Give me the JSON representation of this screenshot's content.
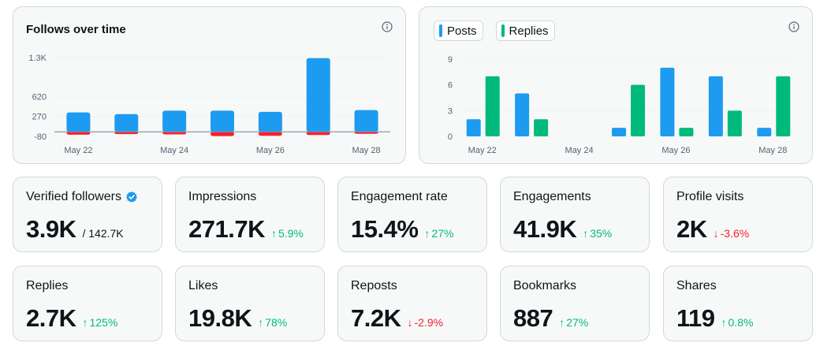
{
  "follows_chart": {
    "title": "Follows over time",
    "info_icon": "info-icon",
    "chart_data": {
      "type": "bar",
      "categories": [
        "May 22",
        "May 23",
        "May 24",
        "May 25",
        "May 26",
        "May 27",
        "May 28"
      ],
      "x_tick_labels": [
        "May 22",
        "May 24",
        "May 26",
        "May 28"
      ],
      "y_tick_labels": [
        "1.3K",
        "620",
        "270",
        "-80"
      ],
      "y_ticks": [
        1300,
        620,
        270,
        -80
      ],
      "ylim": [
        -80,
        1300
      ],
      "series": [
        {
          "values": [
            340,
            310,
            370,
            370,
            350,
            1290,
            380
          ],
          "color": "#1d9bf0"
        },
        {
          "values": [
            -50,
            -40,
            -45,
            -75,
            -70,
            -55,
            -35
          ],
          "color": "#f4212e"
        }
      ]
    }
  },
  "posts_chart": {
    "legend": [
      {
        "label": "Posts",
        "color": "#1d9bf0"
      },
      {
        "label": "Replies",
        "color": "#00ba7c"
      }
    ],
    "info_icon": "info-icon",
    "chart_data": {
      "type": "bar",
      "categories": [
        "May 22",
        "May 23",
        "May 24",
        "May 25",
        "May 26",
        "May 27",
        "May 28"
      ],
      "x_tick_labels": [
        "May 22",
        "May 24",
        "May 26",
        "May 28"
      ],
      "y_tick_labels": [
        "9",
        "6",
        "3",
        "0"
      ],
      "y_ticks": [
        9,
        6,
        3,
        0
      ],
      "ylim": [
        0,
        9
      ],
      "series": [
        {
          "name": "Posts",
          "values": [
            2,
            5,
            0,
            1,
            8,
            7,
            1
          ],
          "color": "#1d9bf0"
        },
        {
          "name": "Replies",
          "values": [
            7,
            2,
            0,
            6,
            1,
            3,
            7
          ],
          "color": "#00ba7c"
        }
      ]
    }
  },
  "stats": [
    {
      "label": "Verified followers",
      "value": "3.9K",
      "sub": "/ 142.7K",
      "verified": true
    },
    {
      "label": "Impressions",
      "value": "271.7K",
      "direction": "up",
      "arrow": "↑",
      "change": "5.9%"
    },
    {
      "label": "Engagement rate",
      "value": "15.4%",
      "direction": "up",
      "arrow": "↑",
      "change": "27%"
    },
    {
      "label": "Engagements",
      "value": "41.9K",
      "direction": "up",
      "arrow": "↑",
      "change": "35%"
    },
    {
      "label": "Profile visits",
      "value": "2K",
      "direction": "down",
      "arrow": "↓",
      "change": "-3.6%"
    },
    {
      "label": "Replies",
      "value": "2.7K",
      "direction": "up",
      "arrow": "↑",
      "change": "125%"
    },
    {
      "label": "Likes",
      "value": "19.8K",
      "direction": "up",
      "arrow": "↑",
      "change": "78%"
    },
    {
      "label": "Reposts",
      "value": "7.2K",
      "direction": "down",
      "arrow": "↓",
      "change": "-2.9%"
    },
    {
      "label": "Bookmarks",
      "value": "887",
      "direction": "up",
      "arrow": "↑",
      "change": "27%"
    },
    {
      "label": "Shares",
      "value": "119",
      "direction": "up",
      "arrow": "↑",
      "change": "0.8%"
    }
  ],
  "colors": {
    "accent": "#1d9bf0",
    "positive": "#00ba7c",
    "negative": "#f4212e"
  }
}
